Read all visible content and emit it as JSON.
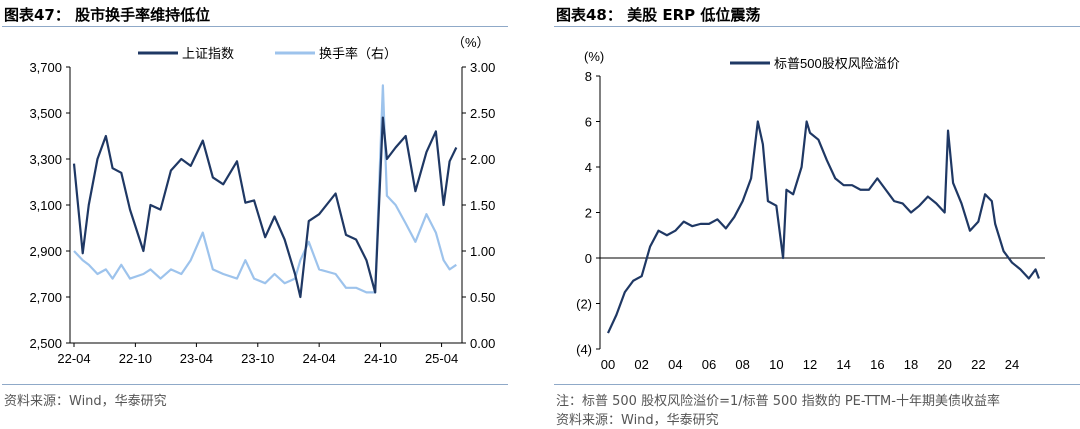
{
  "left": {
    "title": "图表47：  股市换手率维持低位",
    "source": "资料来源：Wind，华泰研究"
  },
  "right": {
    "title": "图表48：  美股 ERP 低位震荡",
    "note": "注：标普 500 股权风险溢价=1/标普 500 指数的 PE-TTM-十年期美债收益率",
    "source": "资料来源：Wind，华泰研究"
  },
  "chart_data": [
    {
      "type": "line",
      "legend_placement": "top",
      "grid": false,
      "right_unit": "（%）",
      "x_ticks": [
        "22-04",
        "22-10",
        "23-04",
        "23-10",
        "24-04",
        "24-10",
        "25-04"
      ],
      "x_range": [
        "2022-04",
        "2025-05"
      ],
      "y_left": {
        "ylim": [
          2500,
          3700
        ],
        "ticks": [
          "2,500",
          "2,700",
          "2,900",
          "3,100",
          "3,300",
          "3,500",
          "3,700"
        ]
      },
      "y_right": {
        "ylim": [
          0,
          3.0
        ],
        "ticks": [
          "0.00",
          "0.50",
          "1.00",
          "1.50",
          "2.00",
          "2.50",
          "3.00"
        ]
      },
      "x": [
        "2022-04-01",
        "2022-04-27",
        "2022-05-15",
        "2022-06-10",
        "2022-07-05",
        "2022-07-25",
        "2022-08-20",
        "2022-09-15",
        "2022-10-25",
        "2022-11-15",
        "2022-12-15",
        "2023-01-15",
        "2023-02-15",
        "2023-03-15",
        "2023-04-20",
        "2023-05-20",
        "2023-06-20",
        "2023-07-31",
        "2023-08-25",
        "2023-09-20",
        "2023-10-23",
        "2023-11-20",
        "2023-12-20",
        "2024-01-20",
        "2024-02-05",
        "2024-03-01",
        "2024-04-01",
        "2024-05-20",
        "2024-06-20",
        "2024-07-20",
        "2024-08-20",
        "2024-09-15",
        "2024-10-08",
        "2024-10-20",
        "2024-11-15",
        "2024-12-15",
        "2025-01-13",
        "2025-02-15",
        "2025-03-15",
        "2025-04-07",
        "2025-04-25",
        "2025-05-15"
      ],
      "series": [
        {
          "name": "上证指数",
          "axis": "left",
          "color": "#1f3864",
          "values": [
            3280,
            2890,
            3100,
            3300,
            3400,
            3260,
            3240,
            3080,
            2900,
            3100,
            3080,
            3250,
            3300,
            3270,
            3380,
            3220,
            3190,
            3290,
            3110,
            3120,
            2960,
            3050,
            2950,
            2800,
            2700,
            3030,
            3060,
            3150,
            2970,
            2950,
            2860,
            2720,
            3480,
            3300,
            3350,
            3400,
            3160,
            3330,
            3420,
            3100,
            3290,
            3350
          ]
        },
        {
          "name": "换手率（右）",
          "axis": "right",
          "color": "#9dc3ec",
          "values": [
            1.0,
            0.9,
            0.85,
            0.75,
            0.8,
            0.7,
            0.85,
            0.7,
            0.75,
            0.8,
            0.7,
            0.8,
            0.75,
            0.9,
            1.2,
            0.8,
            0.75,
            0.7,
            0.9,
            0.7,
            0.65,
            0.75,
            0.65,
            0.7,
            0.9,
            1.1,
            0.8,
            0.75,
            0.6,
            0.6,
            0.55,
            0.55,
            2.8,
            1.6,
            1.5,
            1.3,
            1.1,
            1.4,
            1.2,
            0.9,
            0.8,
            0.85
          ]
        }
      ]
    },
    {
      "type": "line",
      "legend_placement": "top",
      "grid": false,
      "y_unit": "(%)",
      "x_ticks": [
        "00",
        "02",
        "04",
        "06",
        "08",
        "10",
        "12",
        "14",
        "16",
        "18",
        "20",
        "22",
        "24"
      ],
      "xlim": [
        2000,
        2025.6
      ],
      "ylim": [
        -4,
        8
      ],
      "y_ticks": [
        "(4)",
        "(2)",
        "0",
        "2",
        "4",
        "6",
        "8"
      ],
      "x": [
        2000,
        2000.5,
        2001,
        2001.5,
        2002,
        2002.5,
        2003,
        2003.5,
        2004,
        2004.5,
        2005,
        2005.5,
        2006,
        2006.5,
        2007,
        2007.5,
        2008,
        2008.5,
        2008.9,
        2009.2,
        2009.5,
        2010,
        2010.4,
        2010.6,
        2011,
        2011.5,
        2011.8,
        2012,
        2012.5,
        2013,
        2013.5,
        2014,
        2014.5,
        2015,
        2015.5,
        2016,
        2016.5,
        2017,
        2017.5,
        2018,
        2018.5,
        2019,
        2019.5,
        2020,
        2020.2,
        2020.5,
        2021,
        2021.5,
        2022,
        2022.4,
        2022.8,
        2023,
        2023.5,
        2024,
        2024.5,
        2025,
        2025.4,
        2025.6
      ],
      "series": [
        {
          "name": "标普500股权风险溢价",
          "color": "#1f3864",
          "values": [
            -3.3,
            -2.5,
            -1.5,
            -1.0,
            -0.8,
            0.5,
            1.2,
            1.0,
            1.2,
            1.6,
            1.4,
            1.5,
            1.5,
            1.7,
            1.3,
            1.8,
            2.5,
            3.5,
            6.0,
            5.0,
            2.5,
            2.3,
            0.0,
            3.0,
            2.8,
            4.0,
            6.0,
            5.5,
            5.2,
            4.3,
            3.5,
            3.2,
            3.2,
            3.0,
            3.0,
            3.5,
            3.0,
            2.5,
            2.4,
            2.0,
            2.3,
            2.7,
            2.4,
            2.0,
            5.6,
            3.3,
            2.4,
            1.2,
            1.6,
            2.8,
            2.5,
            1.5,
            0.3,
            -0.2,
            -0.5,
            -0.9,
            -0.5,
            -0.9
          ]
        }
      ]
    }
  ]
}
